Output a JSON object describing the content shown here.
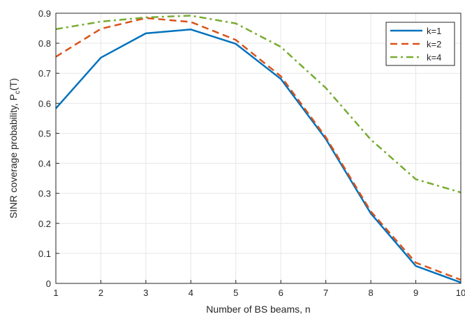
{
  "chart_data": {
    "type": "line",
    "xlabel": "Number of BS beams, n",
    "ylabel_main": "SINR coverage probability, P",
    "ylabel_sub": "c",
    "ylabel_tail": "(T)",
    "xlim": [
      1,
      10
    ],
    "ylim": [
      0,
      0.9
    ],
    "grid": true,
    "legend_position": "top-right",
    "x": [
      1,
      2,
      3,
      4,
      5,
      6,
      7,
      8,
      9,
      10
    ],
    "x_ticks": [
      "1",
      "2",
      "3",
      "4",
      "5",
      "6",
      "7",
      "8",
      "9",
      "10"
    ],
    "y_ticks": [
      "0",
      "0.1",
      "0.2",
      "0.3",
      "0.4",
      "0.5",
      "0.6",
      "0.7",
      "0.8",
      "0.9"
    ],
    "series": [
      {
        "name": "k=1",
        "color": "#0072BD",
        "dash": "solid",
        "values": [
          0.583,
          0.752,
          0.833,
          0.846,
          0.798,
          0.681,
          0.481,
          0.233,
          0.058,
          0.003
        ]
      },
      {
        "name": "k=2",
        "color": "#D95319",
        "dash": "dashed",
        "values": [
          0.755,
          0.848,
          0.884,
          0.871,
          0.811,
          0.69,
          0.487,
          0.24,
          0.069,
          0.012
        ]
      },
      {
        "name": "k=4",
        "color": "#77AC30",
        "dash": "dash-dot",
        "values": [
          0.847,
          0.872,
          0.886,
          0.892,
          0.866,
          0.788,
          0.651,
          0.479,
          0.347,
          0.303
        ]
      }
    ]
  }
}
